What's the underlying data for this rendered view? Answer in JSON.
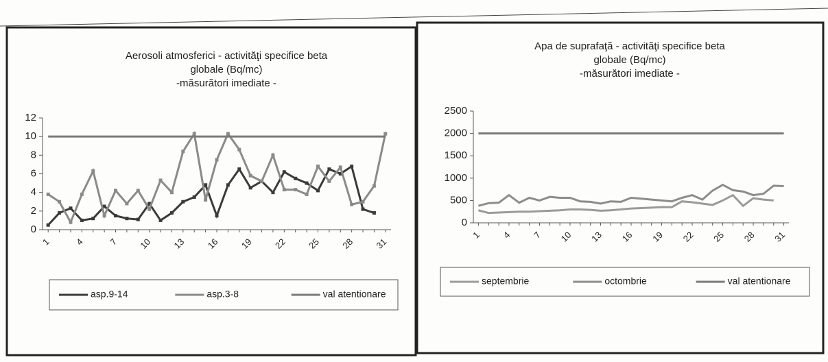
{
  "chart_data": [
    {
      "type": "line",
      "title": [
        "Aerosoli atmosferici  - activităţi specifice beta",
        "globale (Bq/mc)",
        "-măsurători imediate -"
      ],
      "categories": [
        "1",
        null,
        null,
        "4",
        null,
        null,
        "7",
        null,
        null,
        "10",
        null,
        null,
        "13",
        null,
        null,
        "16",
        null,
        null,
        "19",
        null,
        null,
        "22",
        null,
        null,
        "25",
        null,
        null,
        "28",
        null,
        null,
        "31"
      ],
      "ylim": [
        0,
        12
      ],
      "yticks": [
        0,
        2,
        4,
        6,
        8,
        10,
        12
      ],
      "markers": true,
      "series": [
        {
          "name": "asp.9-14",
          "color": "#3a3a3a",
          "values": [
            0.5,
            1.8,
            2.3,
            1.0,
            1.2,
            2.5,
            1.5,
            1.2,
            1.1,
            2.8,
            1.0,
            1.8,
            3.0,
            3.5,
            4.8,
            1.5,
            4.8,
            6.5,
            4.5,
            5.2,
            4.0,
            6.2,
            5.5,
            5.0,
            4.2,
            6.5,
            6.0,
            6.8,
            2.2,
            1.8,
            null
          ]
        },
        {
          "name": "asp.3-8",
          "color": "#8a8a8a",
          "values": [
            3.8,
            3.0,
            0.8,
            3.8,
            6.3,
            1.5,
            4.2,
            2.8,
            4.2,
            2.2,
            5.3,
            4.0,
            8.4,
            10.3,
            3.2,
            7.5,
            10.3,
            8.6,
            5.8,
            5.2,
            8.0,
            4.3,
            4.3,
            3.8,
            6.8,
            5.2,
            6.7,
            2.7,
            3.0,
            4.7,
            10.3
          ]
        },
        {
          "name": "val atentionare",
          "color": "#7a7a7a",
          "values": [
            10,
            10,
            10,
            10,
            10,
            10,
            10,
            10,
            10,
            10,
            10,
            10,
            10,
            10,
            10,
            10,
            10,
            10,
            10,
            10,
            10,
            10,
            10,
            10,
            10,
            10,
            10,
            10,
            10,
            10,
            10
          ]
        }
      ]
    },
    {
      "type": "line",
      "title": [
        "Apa de suprafaţă - activităţi specifice beta",
        "globale (Bq/mc)",
        "-măsurători imediate -"
      ],
      "categories": [
        "1",
        null,
        null,
        "4",
        null,
        null,
        "7",
        null,
        null,
        "10",
        null,
        null,
        "13",
        null,
        null,
        "16",
        null,
        null,
        "19",
        null,
        null,
        "22",
        null,
        null,
        "25",
        null,
        null,
        "28",
        null,
        null,
        "31"
      ],
      "ylim": [
        0,
        2500
      ],
      "yticks": [
        0,
        500,
        1000,
        1500,
        2000,
        2500
      ],
      "markers": false,
      "series": [
        {
          "name": "septembrie",
          "color": "#9a9a9a",
          "values": [
            280,
            220,
            230,
            240,
            250,
            250,
            260,
            270,
            280,
            300,
            300,
            290,
            270,
            280,
            300,
            320,
            330,
            340,
            350,
            350,
            480,
            460,
            430,
            400,
            500,
            620,
            380,
            550,
            520,
            500,
            null
          ]
        },
        {
          "name": "octombrie",
          "color": "#8c8c8c",
          "values": [
            380,
            440,
            450,
            620,
            450,
            560,
            500,
            580,
            560,
            560,
            480,
            470,
            430,
            480,
            470,
            560,
            540,
            520,
            500,
            480,
            560,
            620,
            520,
            720,
            850,
            730,
            700,
            620,
            650,
            830,
            820
          ]
        },
        {
          "name": "val atentionare",
          "color": "#7a7a7a",
          "values": [
            2000,
            2000,
            2000,
            2000,
            2000,
            2000,
            2000,
            2000,
            2000,
            2000,
            2000,
            2000,
            2000,
            2000,
            2000,
            2000,
            2000,
            2000,
            2000,
            2000,
            2000,
            2000,
            2000,
            2000,
            2000,
            2000,
            2000,
            2000,
            2000,
            2000,
            2000
          ]
        }
      ]
    }
  ]
}
